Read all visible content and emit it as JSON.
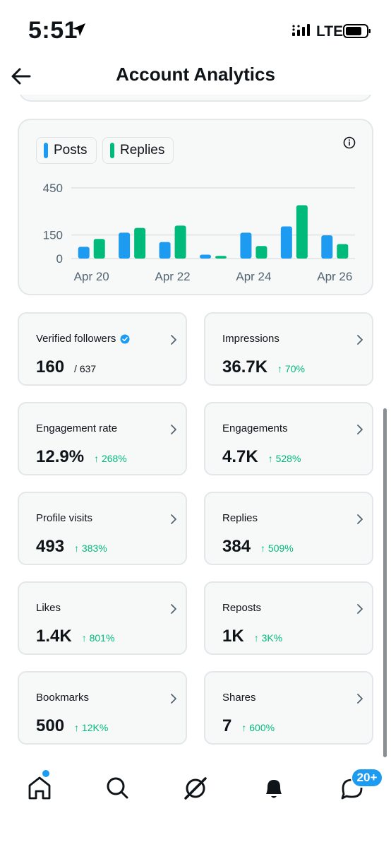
{
  "status_bar": {
    "time": "5:51",
    "network": "LTE"
  },
  "header": {
    "title": "Account Analytics"
  },
  "chart": {
    "legend": [
      {
        "label": "Posts",
        "color": "#1d9bf0"
      },
      {
        "label": "Replies",
        "color": "#00ba7c"
      }
    ],
    "y_ticks": [
      "450",
      "150",
      "0"
    ],
    "x_ticks": [
      "Apr 20",
      "Apr 22",
      "Apr 24",
      "Apr 26"
    ]
  },
  "chart_data": {
    "type": "bar",
    "categories": [
      "Apr 20",
      "Apr 21",
      "Apr 22",
      "Apr 23",
      "Apr 24",
      "Apr 25",
      "Apr 26"
    ],
    "series": [
      {
        "name": "Posts",
        "color": "#1d9bf0",
        "values": [
          75,
          165,
          105,
          25,
          165,
          205,
          148
        ]
      },
      {
        "name": "Replies",
        "color": "#00ba7c",
        "values": [
          125,
          195,
          210,
          17,
          80,
          340,
          92
        ]
      }
    ],
    "ylim": [
      0,
      450
    ],
    "y_ticks": [
      0,
      150,
      450
    ],
    "x_tick_labels": [
      "Apr 20",
      "Apr 22",
      "Apr 24",
      "Apr 26"
    ],
    "grid": true
  },
  "stats": [
    {
      "label": "Verified followers",
      "value": "160",
      "sub": "/ 637",
      "change": "",
      "verified": true
    },
    {
      "label": "Impressions",
      "value": "36.7K",
      "sub": "",
      "change": "↑ 70%"
    },
    {
      "label": "Engagement rate",
      "value": "12.9%",
      "sub": "",
      "change": "↑ 268%"
    },
    {
      "label": "Engagements",
      "value": "4.7K",
      "sub": "",
      "change": "↑ 528%"
    },
    {
      "label": "Profile visits",
      "value": "493",
      "sub": "",
      "change": "↑ 383%"
    },
    {
      "label": "Replies",
      "value": "384",
      "sub": "",
      "change": "↑ 509%"
    },
    {
      "label": "Likes",
      "value": "1.4K",
      "sub": "",
      "change": "↑ 801%"
    },
    {
      "label": "Reposts",
      "value": "1K",
      "sub": "",
      "change": "↑ 3K%"
    },
    {
      "label": "Bookmarks",
      "value": "500",
      "sub": "",
      "change": "↑ 12K%"
    },
    {
      "label": "Shares",
      "value": "7",
      "sub": "",
      "change": "↑ 600%"
    }
  ],
  "tab_bar": {
    "tabs": [
      "home-icon",
      "search-icon",
      "grok-icon",
      "bell-icon",
      "messages-icon"
    ],
    "messages_badge": "20+"
  }
}
